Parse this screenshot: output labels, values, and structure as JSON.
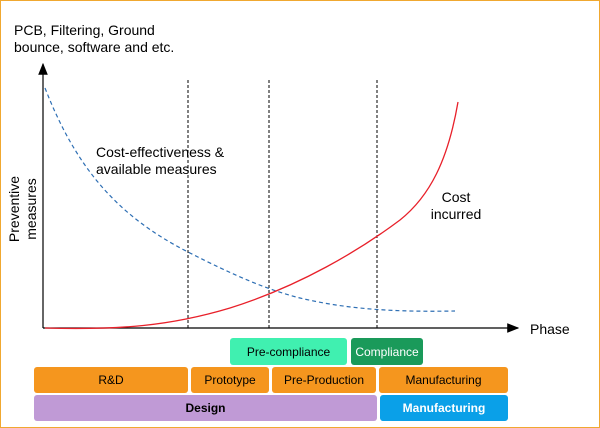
{
  "top_note": "PCB, Filtering, Ground\nbounce, software and etc.",
  "y_axis_label": "Preventive measures",
  "x_axis_label": "Phase",
  "curve_labels": {
    "cost_effectiveness": "Cost-effectiveness &\navailable measures",
    "cost_incurred": "Cost\nincurred"
  },
  "row_compliance": [
    {
      "label": "Pre-compliance",
      "color": "#40f0b0"
    },
    {
      "label": "Compliance",
      "color": "#1a9a5a"
    }
  ],
  "row_phases": [
    {
      "label": "R&D",
      "color": "#f5961e"
    },
    {
      "label": "Prototype",
      "color": "#f5961e"
    },
    {
      "label": "Pre-Production",
      "color": "#f5961e"
    },
    {
      "label": "Manufacturing",
      "color": "#f5961e"
    }
  ],
  "row_stages": [
    {
      "label": "Design",
      "color": "#c09ad6"
    },
    {
      "label": "Manufacturing",
      "color": "#0aa0e8"
    }
  ],
  "colors": {
    "cost_curve": "#e8202a",
    "effectiveness_curve": "#2e6fb4",
    "frame": "#f0a830"
  }
}
